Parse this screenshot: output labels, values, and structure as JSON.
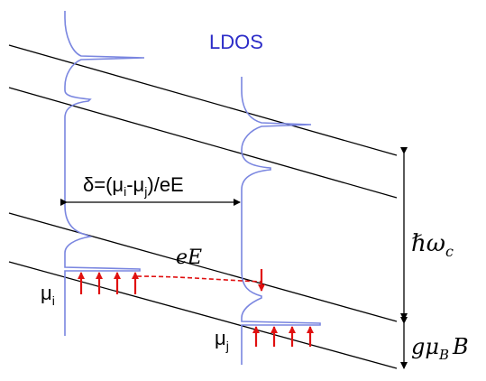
{
  "labels": {
    "ldos": "LDOS",
    "delta": "δ=(μ",
    "delta_sub_i": "i",
    "delta_mid": "-μ",
    "delta_sub_j": "j",
    "delta_end": ")/eE",
    "field": "eE",
    "mu_i": "μ",
    "mu_i_sub": "i",
    "mu_j": "μ",
    "mu_j_sub": "j",
    "hbar_omega": "ℏω",
    "hbar_omega_sub": "c",
    "zeeman": "gμ",
    "zeeman_sub": "B",
    "zeeman_end": "B"
  },
  "colors": {
    "ldos": "#2d2dc8",
    "ldos_curve": "#7a86e0",
    "arrow": "#e01010",
    "line": "#000000"
  },
  "occupied_arrows_left": 4,
  "occupied_arrows_right": 4
}
